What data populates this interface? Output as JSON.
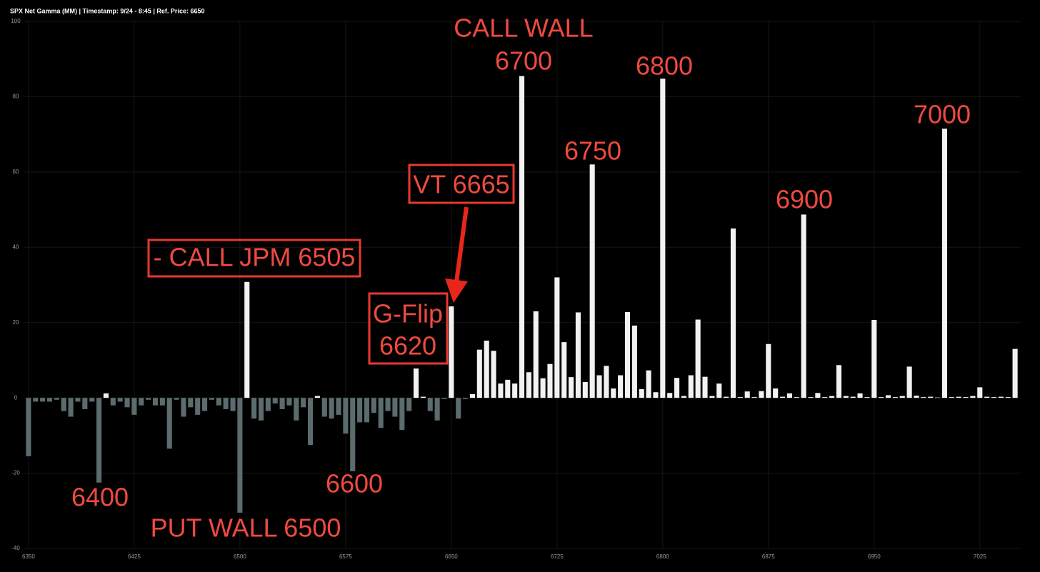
{
  "chart_data": {
    "type": "bar",
    "title": "SPX Net Gamma (MM) | Timestamp: 9/24 - 8:45  | Ref. Price: 6650",
    "x": [
      6350,
      6355,
      6360,
      6365,
      6370,
      6375,
      6380,
      6385,
      6390,
      6395,
      6400,
      6405,
      6410,
      6415,
      6420,
      6425,
      6430,
      6435,
      6440,
      6445,
      6450,
      6455,
      6460,
      6465,
      6470,
      6475,
      6480,
      6485,
      6490,
      6495,
      6500,
      6505,
      6510,
      6515,
      6520,
      6525,
      6530,
      6535,
      6540,
      6545,
      6550,
      6555,
      6560,
      6565,
      6570,
      6575,
      6580,
      6585,
      6590,
      6595,
      6600,
      6605,
      6610,
      6615,
      6620,
      6625,
      6630,
      6635,
      6640,
      6645,
      6650,
      6655,
      6660,
      6665,
      6670,
      6675,
      6680,
      6685,
      6690,
      6695,
      6700,
      6705,
      6710,
      6715,
      6720,
      6725,
      6730,
      6735,
      6740,
      6745,
      6750,
      6755,
      6760,
      6765,
      6770,
      6775,
      6780,
      6785,
      6790,
      6795,
      6800,
      6805,
      6810,
      6815,
      6820,
      6825,
      6830,
      6835,
      6840,
      6845,
      6850,
      6855,
      6860,
      6865,
      6870,
      6875,
      6880,
      6885,
      6890,
      6895,
      6900,
      6905,
      6910,
      6915,
      6920,
      6925,
      6930,
      6935,
      6940,
      6945,
      6950,
      6955,
      6960,
      6965,
      6970,
      6975,
      6980,
      6985,
      6990,
      6995,
      7000,
      7005,
      7010,
      7015,
      7020,
      7025,
      7030,
      7035,
      7040,
      7045,
      7050
    ],
    "values": [
      -15.5,
      -1,
      -1,
      -1,
      -0.5,
      -3.5,
      -5,
      -1,
      -3,
      -1,
      -22.5,
      1.2,
      -2,
      -1,
      -2.5,
      -4.5,
      -2,
      -0.5,
      -2,
      -2,
      -13.5,
      -0.5,
      -5,
      -2.5,
      -4.5,
      -3.5,
      -0.5,
      -2,
      -3,
      -3.5,
      -30.5,
      30.8,
      -5.5,
      -6,
      -3.5,
      -1.5,
      -3,
      -2,
      -6,
      -2.5,
      -12.5,
      0.5,
      -5,
      -5.5,
      -4.5,
      -9.5,
      -19.5,
      -6.5,
      -6.5,
      -4,
      -8,
      -3.5,
      -5,
      -8.5,
      -3.5,
      7.8,
      0.3,
      -3.5,
      -6,
      -0.3,
      24.3,
      -5.5,
      -0.3,
      1,
      12.8,
      15.2,
      12.5,
      3.8,
      4.8,
      3.8,
      85.5,
      6.8,
      23,
      5.2,
      9,
      32,
      14.8,
      5.5,
      22.7,
      4.2,
      62,
      6,
      8.5,
      2.5,
      6,
      22.8,
      19.2,
      2.3,
      7.3,
      1.5,
      84.8,
      1.3,
      5.3,
      0.5,
      6,
      20.8,
      5.6,
      0.5,
      3.8,
      0.3,
      45,
      0.2,
      1.7,
      0.2,
      1.8,
      14.3,
      2.5,
      0.3,
      1.2,
      0.2,
      48.7,
      0.2,
      1.3,
      0.2,
      0.5,
      8.7,
      0.5,
      0.3,
      1.2,
      0.2,
      20.7,
      0.2,
      0.7,
      0.2,
      0.5,
      8.3,
      0.6,
      0.2,
      0.3,
      0.1,
      71.5,
      0.2,
      0.3,
      0.2,
      0.5,
      2.8,
      0.3,
      0.2,
      0.3,
      0.2,
      13
    ],
    "positive_color": "#f2f2f2",
    "negative_color": "#5b6b6e",
    "xlim": [
      6347,
      7054
    ],
    "xticks": [
      6350,
      6425,
      6500,
      6575,
      6650,
      6725,
      6800,
      6875,
      6950,
      7025
    ],
    "ylim": [
      -40,
      100
    ],
    "yticks": [
      -40,
      -20,
      0,
      20,
      40,
      60,
      80,
      100
    ],
    "grid": true,
    "annotations": [
      {
        "lines": [
          "CALL WALL",
          "6700"
        ],
        "boxed": false
      },
      {
        "lines": [
          "6800"
        ],
        "boxed": false
      },
      {
        "lines": [
          "6750"
        ],
        "boxed": false
      },
      {
        "lines": [
          "VT 6665"
        ],
        "boxed": true
      },
      {
        "lines": [
          "7000"
        ],
        "boxed": false
      },
      {
        "lines": [
          "6900"
        ],
        "boxed": false
      },
      {
        "lines": [
          "- CALL JPM 6505"
        ],
        "boxed": true
      },
      {
        "lines": [
          "G-Flip",
          "6620"
        ],
        "boxed": true
      },
      {
        "lines": [
          "6400"
        ],
        "boxed": false
      },
      {
        "lines": [
          "PUT WALL 6500"
        ],
        "boxed": false
      },
      {
        "lines": [
          "6600"
        ],
        "boxed": false
      }
    ]
  }
}
